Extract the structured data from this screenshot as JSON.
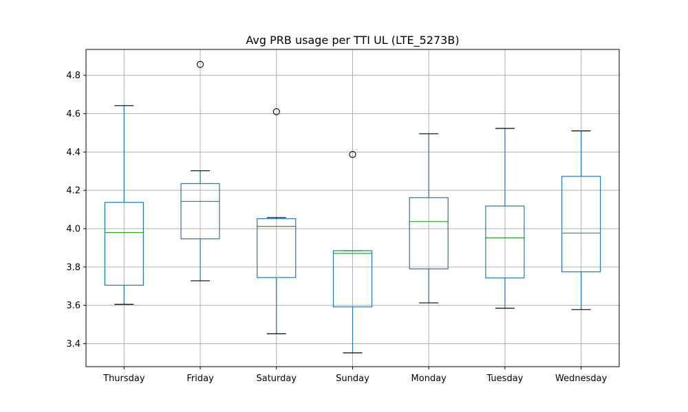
{
  "chart_data": {
    "type": "box",
    "title": "Avg PRB usage per TTI UL (LTE_5273B)",
    "xlabel": "",
    "ylabel": "",
    "categories": [
      "Thursday",
      "Friday",
      "Saturday",
      "Sunday",
      "Monday",
      "Tuesday",
      "Wednesday"
    ],
    "boxes": [
      {
        "category": "Thursday",
        "whisker_low": 3.605,
        "q1": 3.705,
        "median": 3.98,
        "q3": 4.137,
        "whisker_high": 4.642,
        "outliers": []
      },
      {
        "category": "Friday",
        "whisker_low": 3.728,
        "q1": 3.947,
        "median": 4.142,
        "q3": 4.235,
        "whisker_high": 4.302,
        "outliers": [
          4.857
        ]
      },
      {
        "category": "Saturday",
        "whisker_low": 3.452,
        "q1": 3.745,
        "median": 4.012,
        "q3": 4.052,
        "whisker_high": 4.058,
        "outliers": [
          4.61
        ]
      },
      {
        "category": "Sunday",
        "whisker_low": 3.352,
        "q1": 3.592,
        "median": 3.871,
        "q3": 3.885,
        "whisker_high": 3.885,
        "outliers": [
          4.387
        ]
      },
      {
        "category": "Monday",
        "whisker_low": 3.613,
        "q1": 3.79,
        "median": 4.037,
        "q3": 4.162,
        "whisker_high": 4.495,
        "outliers": []
      },
      {
        "category": "Tuesday",
        "whisker_low": 3.585,
        "q1": 3.743,
        "median": 3.952,
        "q3": 4.118,
        "whisker_high": 4.523,
        "outliers": []
      },
      {
        "category": "Wednesday",
        "whisker_low": 3.578,
        "q1": 3.775,
        "median": 3.977,
        "q3": 4.273,
        "whisker_high": 4.51,
        "outliers": []
      }
    ],
    "ylim": [
      3.28,
      4.935
    ],
    "yticks": [
      3.4,
      3.6,
      3.8,
      4.0,
      4.2,
      4.4,
      4.6,
      4.8
    ],
    "grid": true,
    "colors": {
      "box": "#1f77b4",
      "median": "#2ca02c",
      "whisker_cap": "#000000",
      "outlier": "#000000",
      "grid": "#b0b0b0"
    }
  }
}
